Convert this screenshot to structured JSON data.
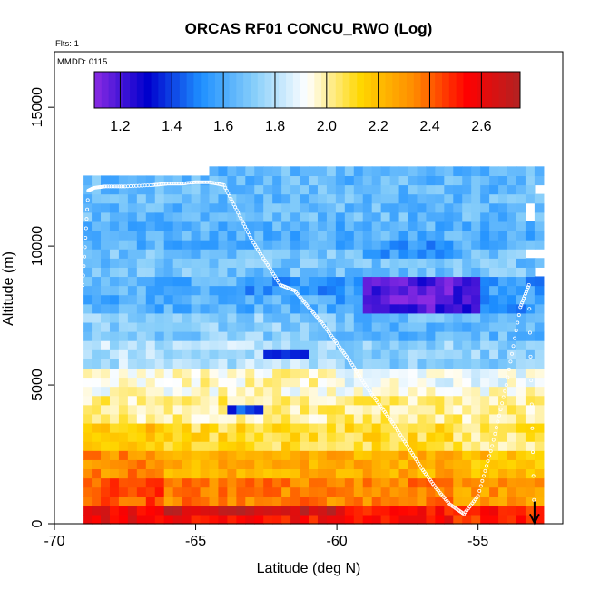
{
  "chart_data": {
    "type": "heatmap",
    "title": "ORCAS RF01 CONCU_RWO (Log)",
    "subtitle_flights": "Flts: 1",
    "date_label": "MMDD: 0115",
    "xlabel": "Latitude (deg N)",
    "ylabel": "Altitude (m)",
    "xlim": [
      -70,
      -52
    ],
    "ylim": [
      0,
      17000
    ],
    "x_ticks": [
      -70,
      -65,
      -60,
      -55
    ],
    "x_tick_labels": [
      "-70",
      "-65",
      "-60",
      "-55"
    ],
    "y_ticks": [
      0,
      5000,
      10000,
      15000
    ],
    "y_tick_labels": [
      "0",
      "5000",
      "10000",
      "15000"
    ],
    "colorbar": {
      "range": [
        1.1,
        2.75
      ],
      "ticks": [
        1.2,
        1.4,
        1.6,
        1.8,
        2.0,
        2.2,
        2.4,
        2.6
      ],
      "tick_labels": [
        "1.2",
        "1.4",
        "1.6",
        "1.8",
        "2.0",
        "2.2",
        "2.4",
        "2.6"
      ],
      "colors": [
        "#8a2be2",
        "#0000cd",
        "#1e90ff",
        "#87cefa",
        "#ffffff",
        "#ffd700",
        "#ff8c00",
        "#ff0000",
        "#b22222"
      ]
    },
    "data_extent": {
      "lat_min": -69,
      "lat_max": -52.8,
      "alt_min": 0,
      "alt_max": 12700
    },
    "altitude_layers": [
      {
        "alt": [
          11000,
          12300
        ],
        "value": 1.65
      },
      {
        "alt": [
          9800,
          11000
        ],
        "value": 1.62
      },
      {
        "alt": [
          8800,
          9800
        ],
        "value": 1.68
      },
      {
        "alt": [
          7500,
          8800
        ],
        "value": 1.6
      },
      {
        "alt": [
          6500,
          7500
        ],
        "value": 1.7
      },
      {
        "alt": [
          5500,
          6500
        ],
        "value": 1.78
      },
      {
        "alt": [
          4500,
          5500
        ],
        "value": 1.95
      },
      {
        "alt": [
          3500,
          4500
        ],
        "value": 2.02
      },
      {
        "alt": [
          2500,
          3500
        ],
        "value": 2.1
      },
      {
        "alt": [
          1500,
          2500
        ],
        "value": 2.25
      },
      {
        "alt": [
          700,
          1500
        ],
        "value": 2.35
      },
      {
        "alt": [
          0,
          700
        ],
        "value": 2.55
      }
    ],
    "features": [
      {
        "lat": [
          -59,
          -55
        ],
        "alt": [
          7500,
          8800
        ],
        "value": 1.2
      },
      {
        "lat": [
          -58,
          -56
        ],
        "alt": [
          8000,
          8700
        ],
        "value": 1.12
      },
      {
        "lat": [
          -62.5,
          -61
        ],
        "alt": [
          5800,
          6300
        ],
        "value": 1.3
      },
      {
        "lat": [
          -64,
          -62.5
        ],
        "alt": [
          3800,
          4400
        ],
        "value": 1.4
      },
      {
        "lat": [
          -66,
          -60
        ],
        "alt": [
          200,
          800
        ],
        "value": 2.7
      },
      {
        "lat": [
          -69,
          -66
        ],
        "alt": [
          0,
          600
        ],
        "value": 2.6
      },
      {
        "lat": [
          -59,
          -55.5
        ],
        "alt": [
          9500,
          10200
        ],
        "value": 1.55
      },
      {
        "lat": [
          -63.5,
          -59.5
        ],
        "alt": [
          8200,
          9000
        ],
        "value": 1.55
      }
    ],
    "flight_track": {
      "lat": [
        -69,
        -68.8,
        -68.6,
        -68.2,
        -67.5,
        -66.5,
        -66,
        -65.5,
        -65,
        -64.5,
        -64,
        -63.5,
        -63,
        -62.5,
        -62,
        -61.5,
        -61,
        -60.5,
        -60,
        -59.5,
        -59,
        -58.5,
        -58,
        -57.5,
        -57,
        -56.5,
        -56,
        -55.5,
        -55,
        -54.5,
        -54,
        -53.5,
        -53.2,
        -53
      ],
      "alt": [
        8600,
        12000,
        12100,
        12150,
        12150,
        12200,
        12250,
        12250,
        12300,
        12300,
        12200,
        11200,
        10200,
        9400,
        8600,
        8400,
        7800,
        7200,
        6500,
        5800,
        5000,
        4300,
        3600,
        2800,
        2000,
        1300,
        700,
        350,
        1000,
        2800,
        5000,
        7800,
        8600,
        0
      ]
    }
  }
}
